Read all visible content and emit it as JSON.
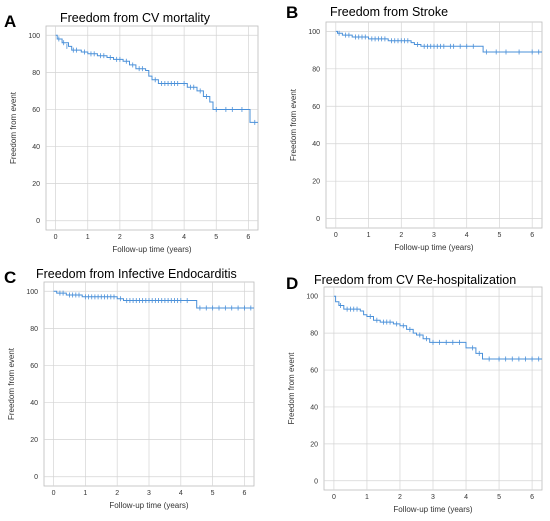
{
  "colors": {
    "curve": "#4a90d9",
    "grid": "#d4d4d4",
    "frame": "#bdbdbd"
  },
  "chart_data": [
    {
      "type": "line",
      "panel": "A",
      "title": "Freedom from CV mortality",
      "xlabel": "Follow-up time (years)",
      "ylabel": "Freedom from event",
      "xlim": [
        -0.3,
        6.3
      ],
      "ylim": [
        -5,
        105
      ],
      "x_ticks": [
        0,
        1,
        2,
        3,
        4,
        5,
        6
      ],
      "y_ticks": [
        0,
        20,
        40,
        60,
        80,
        100
      ],
      "grid": true,
      "series": [
        {
          "values": [
            [
              0,
              100
            ],
            [
              0.05,
              98
            ],
            [
              0.2,
              96
            ],
            [
              0.4,
              94
            ],
            [
              0.5,
              92
            ],
            [
              0.8,
              91
            ],
            [
              1.0,
              90
            ],
            [
              1.3,
              89
            ],
            [
              1.6,
              88
            ],
            [
              1.8,
              87
            ],
            [
              2.1,
              86
            ],
            [
              2.3,
              84
            ],
            [
              2.5,
              82
            ],
            [
              2.8,
              81
            ],
            [
              2.9,
              78
            ],
            [
              3.0,
              76
            ],
            [
              3.2,
              74
            ],
            [
              3.9,
              74
            ],
            [
              4.1,
              72
            ],
            [
              4.4,
              70
            ],
            [
              4.6,
              67
            ],
            [
              4.8,
              64
            ],
            [
              4.9,
              60
            ],
            [
              6.0,
              60
            ],
            [
              6.05,
              53
            ],
            [
              6.3,
              53
            ]
          ],
          "censored": [
            [
              0.1,
              98
            ],
            [
              0.25,
              96
            ],
            [
              0.35,
              94
            ],
            [
              0.55,
              92
            ],
            [
              0.65,
              92
            ],
            [
              0.9,
              91
            ],
            [
              1.1,
              90
            ],
            [
              1.2,
              90
            ],
            [
              1.4,
              89
            ],
            [
              1.5,
              89
            ],
            [
              1.7,
              88
            ],
            [
              1.9,
              87
            ],
            [
              2.0,
              87
            ],
            [
              2.2,
              86
            ],
            [
              2.4,
              84
            ],
            [
              2.6,
              82
            ],
            [
              2.7,
              82
            ],
            [
              3.1,
              76
            ],
            [
              3.3,
              74
            ],
            [
              3.4,
              74
            ],
            [
              3.5,
              74
            ],
            [
              3.6,
              74
            ],
            [
              3.7,
              74
            ],
            [
              3.8,
              74
            ],
            [
              4.0,
              74
            ],
            [
              4.2,
              72
            ],
            [
              4.3,
              72
            ],
            [
              4.5,
              70
            ],
            [
              4.7,
              67
            ],
            [
              5.0,
              60
            ],
            [
              5.3,
              60
            ],
            [
              5.5,
              60
            ],
            [
              5.8,
              60
            ],
            [
              6.2,
              53
            ]
          ]
        }
      ]
    },
    {
      "type": "line",
      "panel": "B",
      "title": "Freedom from Stroke",
      "xlabel": "Follow-up time (years)",
      "ylabel": "Freedom from event",
      "xlim": [
        -0.3,
        6.3
      ],
      "ylim": [
        -5,
        105
      ],
      "x_ticks": [
        0,
        1,
        2,
        3,
        4,
        5,
        6
      ],
      "y_ticks": [
        0,
        20,
        40,
        60,
        80,
        100
      ],
      "grid": true,
      "series": [
        {
          "values": [
            [
              0,
              100
            ],
            [
              0.05,
              99
            ],
            [
              0.2,
              98
            ],
            [
              0.5,
              97
            ],
            [
              1.0,
              96
            ],
            [
              1.6,
              95
            ],
            [
              2.3,
              94
            ],
            [
              2.4,
              93
            ],
            [
              2.6,
              92
            ],
            [
              4.4,
              92
            ],
            [
              4.5,
              89
            ],
            [
              6.3,
              89
            ]
          ],
          "censored": [
            [
              0.1,
              99
            ],
            [
              0.3,
              98
            ],
            [
              0.4,
              98
            ],
            [
              0.6,
              97
            ],
            [
              0.7,
              97
            ],
            [
              0.8,
              97
            ],
            [
              0.9,
              97
            ],
            [
              1.1,
              96
            ],
            [
              1.2,
              96
            ],
            [
              1.3,
              96
            ],
            [
              1.4,
              96
            ],
            [
              1.5,
              96
            ],
            [
              1.7,
              95
            ],
            [
              1.8,
              95
            ],
            [
              1.9,
              95
            ],
            [
              2.0,
              95
            ],
            [
              2.1,
              95
            ],
            [
              2.2,
              95
            ],
            [
              2.5,
              93
            ],
            [
              2.7,
              92
            ],
            [
              2.8,
              92
            ],
            [
              2.9,
              92
            ],
            [
              3.0,
              92
            ],
            [
              3.1,
              92
            ],
            [
              3.2,
              92
            ],
            [
              3.3,
              92
            ],
            [
              3.5,
              92
            ],
            [
              3.6,
              92
            ],
            [
              3.8,
              92
            ],
            [
              4.0,
              92
            ],
            [
              4.2,
              92
            ],
            [
              4.6,
              89
            ],
            [
              4.9,
              89
            ],
            [
              5.2,
              89
            ],
            [
              5.6,
              89
            ],
            [
              6.0,
              89
            ],
            [
              6.2,
              89
            ]
          ]
        }
      ]
    },
    {
      "type": "line",
      "panel": "C",
      "title": "Freedom from Infective Endocarditis",
      "xlabel": "Follow-up time (years)",
      "ylabel": "Freedom from event",
      "xlim": [
        -0.3,
        6.3
      ],
      "ylim": [
        -5,
        105
      ],
      "x_ticks": [
        0,
        1,
        2,
        3,
        4,
        5,
        6
      ],
      "y_ticks": [
        0,
        20,
        40,
        60,
        80,
        100
      ],
      "grid": true,
      "series": [
        {
          "values": [
            [
              0,
              100
            ],
            [
              0.1,
              99
            ],
            [
              0.4,
              98
            ],
            [
              0.9,
              97
            ],
            [
              2.0,
              96
            ],
            [
              2.2,
              95
            ],
            [
              4.4,
              95
            ],
            [
              4.5,
              91
            ],
            [
              6.3,
              91
            ]
          ],
          "censored": [
            [
              0.2,
              99
            ],
            [
              0.3,
              99
            ],
            [
              0.5,
              98
            ],
            [
              0.6,
              98
            ],
            [
              0.7,
              98
            ],
            [
              0.8,
              98
            ],
            [
              1.0,
              97
            ],
            [
              1.1,
              97
            ],
            [
              1.2,
              97
            ],
            [
              1.3,
              97
            ],
            [
              1.4,
              97
            ],
            [
              1.5,
              97
            ],
            [
              1.6,
              97
            ],
            [
              1.7,
              97
            ],
            [
              1.8,
              97
            ],
            [
              1.9,
              97
            ],
            [
              2.1,
              96
            ],
            [
              2.3,
              95
            ],
            [
              2.4,
              95
            ],
            [
              2.5,
              95
            ],
            [
              2.6,
              95
            ],
            [
              2.7,
              95
            ],
            [
              2.8,
              95
            ],
            [
              2.9,
              95
            ],
            [
              3.0,
              95
            ],
            [
              3.1,
              95
            ],
            [
              3.2,
              95
            ],
            [
              3.3,
              95
            ],
            [
              3.4,
              95
            ],
            [
              3.5,
              95
            ],
            [
              3.6,
              95
            ],
            [
              3.7,
              95
            ],
            [
              3.8,
              95
            ],
            [
              3.9,
              95
            ],
            [
              4.0,
              95
            ],
            [
              4.2,
              95
            ],
            [
              4.6,
              91
            ],
            [
              4.8,
              91
            ],
            [
              5.0,
              91
            ],
            [
              5.2,
              91
            ],
            [
              5.4,
              91
            ],
            [
              5.6,
              91
            ],
            [
              5.8,
              91
            ],
            [
              6.0,
              91
            ],
            [
              6.2,
              91
            ]
          ]
        }
      ]
    },
    {
      "type": "line",
      "panel": "D",
      "title": "Freedom from CV Re-hospitalization",
      "xlabel": "Follow-up time (years)",
      "ylabel": "Freedom from event",
      "xlim": [
        -0.3,
        6.3
      ],
      "ylim": [
        -5,
        105
      ],
      "x_ticks": [
        0,
        1,
        2,
        3,
        4,
        5,
        6
      ],
      "y_ticks": [
        0,
        20,
        40,
        60,
        80,
        100
      ],
      "grid": true,
      "series": [
        {
          "values": [
            [
              0,
              100
            ],
            [
              0.05,
              97
            ],
            [
              0.15,
              95
            ],
            [
              0.3,
              93
            ],
            [
              0.8,
              92
            ],
            [
              0.9,
              90
            ],
            [
              1.0,
              89
            ],
            [
              1.2,
              87
            ],
            [
              1.4,
              86
            ],
            [
              1.8,
              85
            ],
            [
              2.0,
              84
            ],
            [
              2.2,
              82
            ],
            [
              2.4,
              80
            ],
            [
              2.5,
              79
            ],
            [
              2.7,
              77
            ],
            [
              2.9,
              75
            ],
            [
              3.9,
              75
            ],
            [
              4.0,
              72
            ],
            [
              4.3,
              69
            ],
            [
              4.5,
              66
            ],
            [
              6.3,
              66
            ]
          ],
          "censored": [
            [
              0.2,
              95
            ],
            [
              0.4,
              93
            ],
            [
              0.5,
              93
            ],
            [
              0.6,
              93
            ],
            [
              0.7,
              93
            ],
            [
              1.1,
              89
            ],
            [
              1.3,
              87
            ],
            [
              1.5,
              86
            ],
            [
              1.6,
              86
            ],
            [
              1.7,
              86
            ],
            [
              1.9,
              85
            ],
            [
              2.1,
              84
            ],
            [
              2.3,
              82
            ],
            [
              2.6,
              79
            ],
            [
              2.8,
              77
            ],
            [
              3.0,
              75
            ],
            [
              3.2,
              75
            ],
            [
              3.4,
              75
            ],
            [
              3.6,
              75
            ],
            [
              3.8,
              75
            ],
            [
              4.2,
              72
            ],
            [
              4.4,
              69
            ],
            [
              4.7,
              66
            ],
            [
              5.0,
              66
            ],
            [
              5.2,
              66
            ],
            [
              5.4,
              66
            ],
            [
              5.6,
              66
            ],
            [
              5.8,
              66
            ],
            [
              6.0,
              66
            ],
            [
              6.2,
              66
            ]
          ]
        }
      ]
    }
  ]
}
